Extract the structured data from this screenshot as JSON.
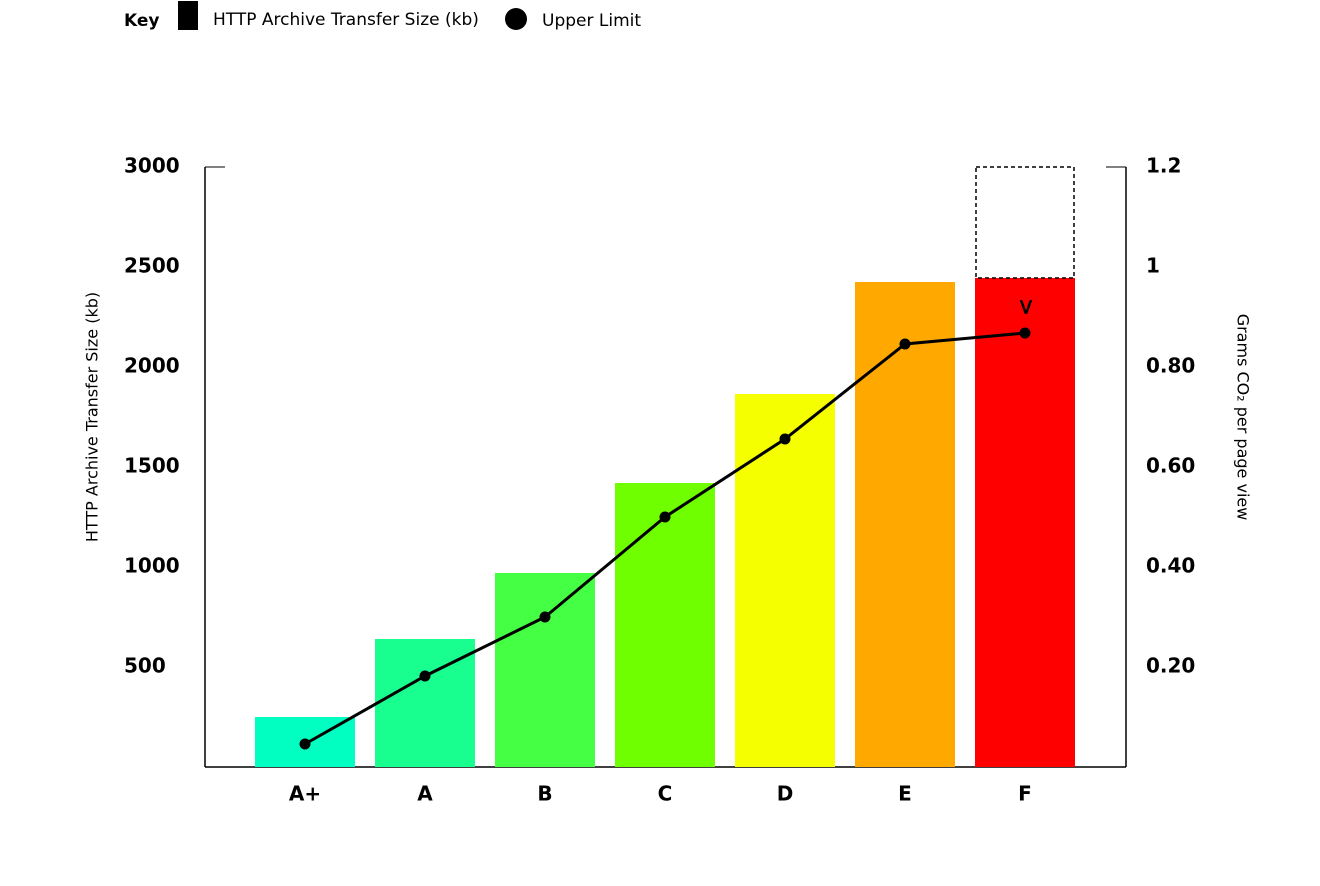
{
  "chart_data": {
    "type": "bar",
    "key_title": "Key",
    "ylabel": "HTTP Archive Transfer Size (kb)",
    "y2label": "Grams CO₂ per page view",
    "categories": [
      "A+",
      "A",
      "B",
      "C",
      "D",
      "E",
      "F"
    ],
    "series": [
      {
        "name": "HTTP Archive Transfer Size (kb)",
        "type": "bar",
        "color": "#000000",
        "colors": [
          "#00ffc0",
          "#18ff90",
          "#44ff44",
          "#6fff00",
          "#f5ff00",
          "#ffa800",
          "#ff0000"
        ],
        "values": [
          250,
          640,
          970,
          1420,
          1865,
          2425,
          2445
        ]
      },
      {
        "name": "Upper Limit",
        "type": "line",
        "axis": "y2",
        "color": "#000000",
        "values": [
          0.046,
          0.182,
          0.3,
          0.5,
          0.656,
          0.846,
          0.868
        ]
      }
    ],
    "annotation": ">",
    "ylim": [
      0,
      3000
    ],
    "yticks": [
      500,
      1000,
      1500,
      2000,
      2500,
      3000
    ],
    "y2lim": [
      0,
      1.2
    ],
    "y2ticks": [
      {
        "value": 0.2,
        "label": "0.20"
      },
      {
        "value": 0.4,
        "label": "0.40"
      },
      {
        "value": 0.6,
        "label": "0.60"
      },
      {
        "value": 0.8,
        "label": "0.80"
      },
      1,
      1.2
    ]
  }
}
